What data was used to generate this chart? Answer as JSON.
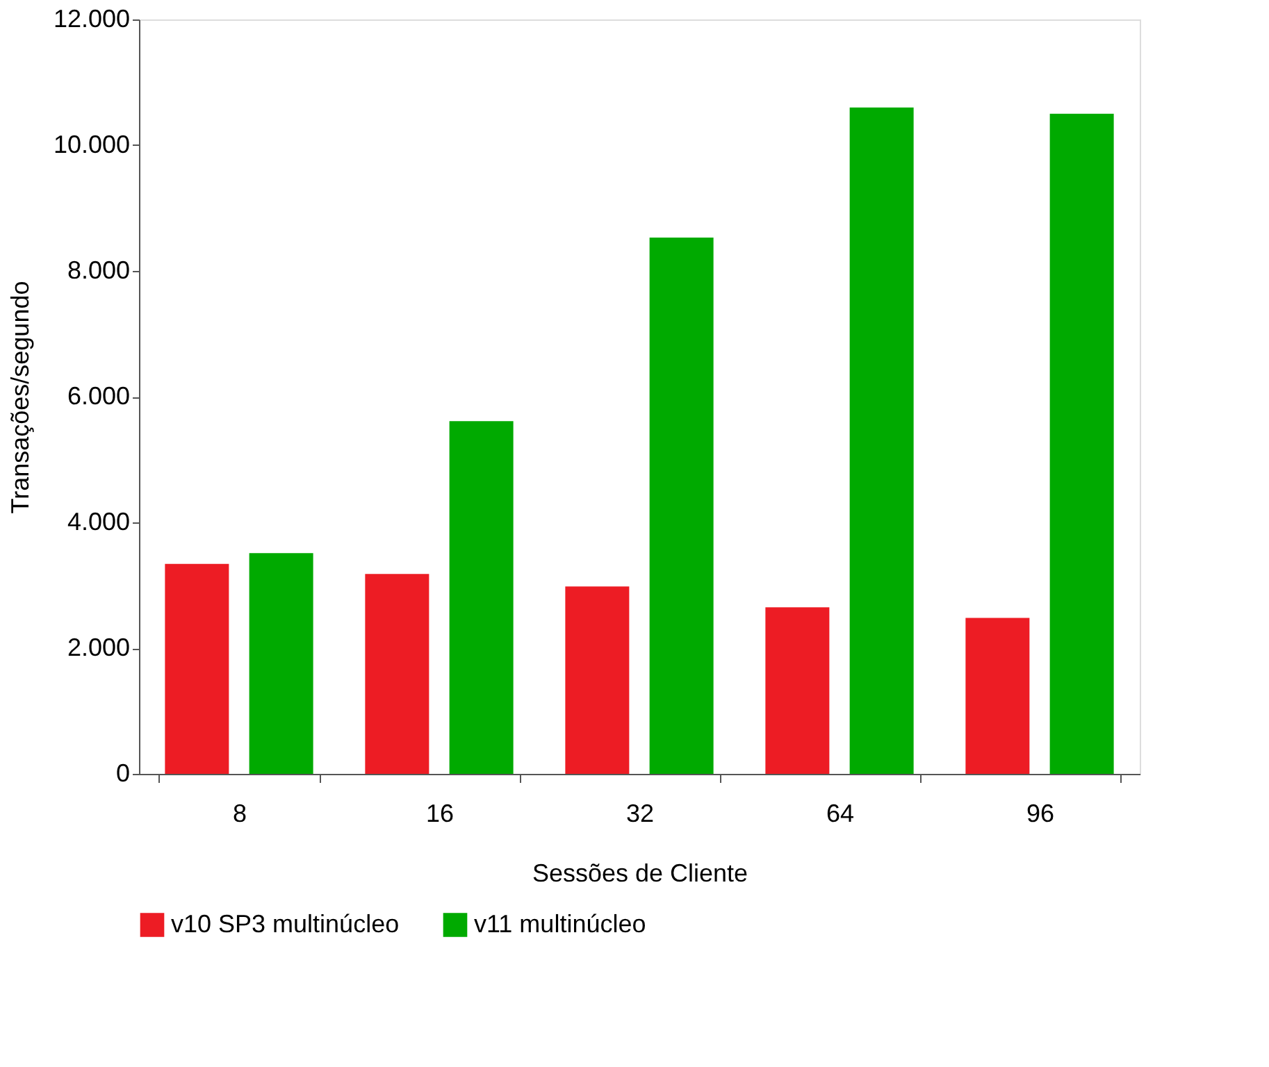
{
  "chart_data": {
    "type": "bar",
    "xlabel": "Sessões de Cliente",
    "ylabel": "Transações/segundo",
    "categories": [
      "8",
      "16",
      "32",
      "64",
      "96"
    ],
    "series": [
      {
        "name": "v10 SP3 multinúcleo",
        "color": "#ed1c24",
        "values": [
          3340,
          3180,
          2980,
          2650,
          2480
        ]
      },
      {
        "name": "v11 multinúcleo",
        "color": "#00aa00",
        "values": [
          3510,
          5610,
          8530,
          10600,
          10500
        ]
      }
    ],
    "ylim": [
      0,
      12000
    ],
    "yticks": [
      {
        "value": 0,
        "label": "0"
      },
      {
        "value": 2000,
        "label": "2.000"
      },
      {
        "value": 4000,
        "label": "4.000"
      },
      {
        "value": 6000,
        "label": "6.000"
      },
      {
        "value": 8000,
        "label": "8.000"
      },
      {
        "value": 10000,
        "label": "10.000"
      },
      {
        "value": 12000,
        "label": "12.000"
      }
    ],
    "grid": false,
    "legend": "bottom"
  }
}
